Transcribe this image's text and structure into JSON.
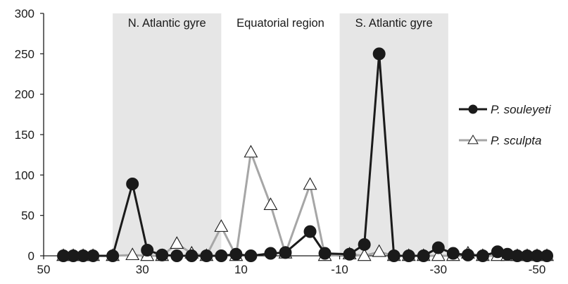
{
  "chart_data": {
    "type": "line",
    "xlim": [
      50,
      -50
    ],
    "ylim": [
      0,
      300
    ],
    "x_ticks": [
      "50",
      "30",
      "10",
      "-10",
      "-30",
      "-50"
    ],
    "y_ticks": [
      "0",
      "50",
      "100",
      "150",
      "200",
      "250",
      "300"
    ],
    "x_tick_values": [
      50,
      30,
      10,
      -10,
      -30,
      -50
    ],
    "y_tick_values": [
      0,
      50,
      100,
      150,
      200,
      250,
      300
    ],
    "regions": [
      {
        "label": "N. Atlantic gyre",
        "x_start": 36,
        "x_end": 14,
        "shaded": true
      },
      {
        "label": "Equatorial region",
        "x_start": 14,
        "x_end": -10,
        "shaded": false
      },
      {
        "label": "S. Atlantic gyre",
        "x_start": -10,
        "x_end": -32,
        "shaded": true
      }
    ],
    "legend_position": "right",
    "series": [
      {
        "name": "P. souleyeti",
        "color": "#1a1a1a",
        "marker": "circle",
        "points": [
          [
            46,
            0
          ],
          [
            44,
            0
          ],
          [
            42,
            0
          ],
          [
            40,
            0
          ],
          [
            36,
            0
          ],
          [
            32,
            89
          ],
          [
            29,
            7
          ],
          [
            26,
            1
          ],
          [
            23,
            0
          ],
          [
            20,
            0
          ],
          [
            17,
            0
          ],
          [
            14,
            0
          ],
          [
            11,
            2
          ],
          [
            8,
            0
          ],
          [
            4,
            3
          ],
          [
            1,
            4
          ],
          [
            -4,
            30
          ],
          [
            -7,
            3
          ],
          [
            -12,
            2
          ],
          [
            -15,
            14
          ],
          [
            -18,
            250
          ],
          [
            -21,
            0
          ],
          [
            -24,
            0
          ],
          [
            -27,
            0
          ],
          [
            -30,
            10
          ],
          [
            -33,
            3
          ],
          [
            -36,
            1
          ],
          [
            -39,
            0
          ],
          [
            -42,
            5
          ],
          [
            -44,
            2
          ],
          [
            -46,
            0
          ],
          [
            -48,
            0
          ],
          [
            -50,
            0
          ],
          [
            -52,
            0
          ]
        ]
      },
      {
        "name": "P. sculpta",
        "color": "#a6a6a6",
        "marker": "triangle",
        "points": [
          [
            46,
            0
          ],
          [
            44,
            0
          ],
          [
            42,
            0
          ],
          [
            40,
            0
          ],
          [
            36,
            0
          ],
          [
            32,
            1
          ],
          [
            29,
            0
          ],
          [
            26,
            0
          ],
          [
            23,
            15
          ],
          [
            20,
            3
          ],
          [
            17,
            0
          ],
          [
            14,
            36
          ],
          [
            11,
            0
          ],
          [
            8,
            128
          ],
          [
            4,
            63
          ],
          [
            1,
            3
          ],
          [
            -4,
            88
          ],
          [
            -7,
            0
          ],
          [
            -12,
            2
          ],
          [
            -15,
            0
          ],
          [
            -18,
            5
          ],
          [
            -21,
            0
          ],
          [
            -24,
            0
          ],
          [
            -27,
            0
          ],
          [
            -30,
            0
          ],
          [
            -33,
            0
          ],
          [
            -36,
            3
          ],
          [
            -39,
            0
          ],
          [
            -42,
            0
          ],
          [
            -44,
            0
          ],
          [
            -46,
            0
          ],
          [
            -48,
            0
          ],
          [
            -50,
            0
          ],
          [
            -52,
            0
          ]
        ]
      }
    ]
  }
}
